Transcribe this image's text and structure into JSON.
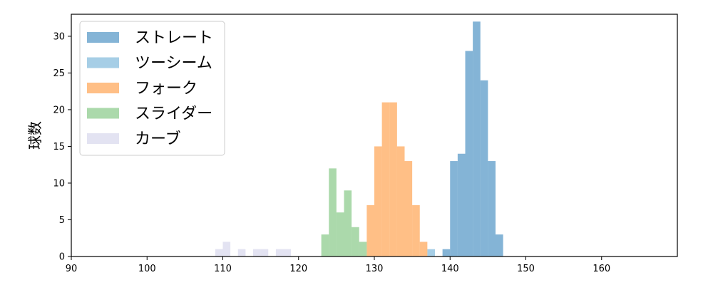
{
  "chart_data": {
    "type": "histogram",
    "title": "",
    "xlabel": "",
    "ylabel": "球数",
    "xlim": [
      90,
      170
    ],
    "ylim": [
      0,
      33
    ],
    "xticks": [
      90,
      100,
      110,
      120,
      130,
      140,
      150,
      160
    ],
    "yticks": [
      0,
      5,
      10,
      15,
      20,
      25,
      30
    ],
    "bin_width": 1,
    "legend_position": "upper-left",
    "series": [
      {
        "name": "ストレート",
        "color": "#1f77b4",
        "alpha": 0.55,
        "bins": [
          {
            "x": 139,
            "count": 1
          },
          {
            "x": 140,
            "count": 13
          },
          {
            "x": 141,
            "count": 14
          },
          {
            "x": 142,
            "count": 28
          },
          {
            "x": 143,
            "count": 32
          },
          {
            "x": 144,
            "count": 24
          },
          {
            "x": 145,
            "count": 13
          },
          {
            "x": 146,
            "count": 3
          }
        ]
      },
      {
        "name": "ツーシーム",
        "color": "#6baed6",
        "alpha": 0.6,
        "bins": [
          {
            "x": 137,
            "count": 1
          }
        ]
      },
      {
        "name": "フォーク",
        "color": "#ff7f0e",
        "alpha": 0.5,
        "bins": [
          {
            "x": 129,
            "count": 7
          },
          {
            "x": 130,
            "count": 15
          },
          {
            "x": 131,
            "count": 21
          },
          {
            "x": 132,
            "count": 21
          },
          {
            "x": 133,
            "count": 15
          },
          {
            "x": 134,
            "count": 13
          },
          {
            "x": 135,
            "count": 7
          },
          {
            "x": 136,
            "count": 2
          }
        ]
      },
      {
        "name": "スライダー",
        "color": "#2ca02c",
        "alpha": 0.4,
        "bins": [
          {
            "x": 123,
            "count": 3
          },
          {
            "x": 124,
            "count": 12
          },
          {
            "x": 125,
            "count": 6
          },
          {
            "x": 126,
            "count": 9
          },
          {
            "x": 127,
            "count": 4
          },
          {
            "x": 128,
            "count": 2
          }
        ]
      },
      {
        "name": "カーブ",
        "color": "#c8c8e6",
        "alpha": 0.5,
        "bins": [
          {
            "x": 109,
            "count": 1
          },
          {
            "x": 110,
            "count": 2
          },
          {
            "x": 112,
            "count": 1
          },
          {
            "x": 114,
            "count": 1
          },
          {
            "x": 115,
            "count": 1
          },
          {
            "x": 117,
            "count": 1
          },
          {
            "x": 118,
            "count": 1
          }
        ]
      }
    ]
  }
}
